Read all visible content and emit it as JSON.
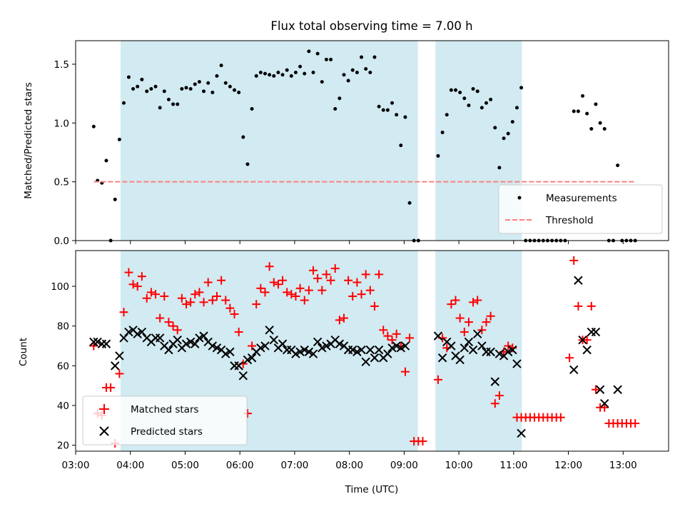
{
  "chart_data": [
    {
      "type": "scatter",
      "title": "Flux total observing time = 7.00 h",
      "xlabel": "",
      "ylabel": "Matched/Predicted stars",
      "xlim": [
        3.0,
        13.83
      ],
      "ylim": [
        0,
        1.7
      ],
      "yticks": [
        0.0,
        0.5,
        1.0,
        1.5
      ],
      "ytick_labels": [
        "0.0",
        "0.5",
        "1.0",
        "1.5"
      ],
      "grid": false,
      "legend_position": "lower-right",
      "shaded_intervals": [
        [
          3.82,
          9.25
        ],
        [
          9.57,
          11.15
        ]
      ],
      "shade_color": "#add8e6",
      "series": [
        {
          "name": "Measurements",
          "kind": "scatter",
          "color": "#000000",
          "marker": "dot",
          "x": [
            3.33,
            3.4,
            3.48,
            3.56,
            3.64,
            3.72,
            3.8,
            3.88,
            3.97,
            4.05,
            4.13,
            4.21,
            4.3,
            4.38,
            4.46,
            4.54,
            4.62,
            4.7,
            4.78,
            4.86,
            4.94,
            5.02,
            5.1,
            5.18,
            5.26,
            5.34,
            5.42,
            5.5,
            5.58,
            5.66,
            5.74,
            5.82,
            5.9,
            5.98,
            6.06,
            6.14,
            6.22,
            6.3,
            6.38,
            6.46,
            6.54,
            6.62,
            6.7,
            6.78,
            6.86,
            6.94,
            7.02,
            7.1,
            7.18,
            7.26,
            7.34,
            7.42,
            7.5,
            7.58,
            7.66,
            7.74,
            7.82,
            7.9,
            7.98,
            8.06,
            8.14,
            8.22,
            8.3,
            8.38,
            8.46,
            8.54,
            8.62,
            8.7,
            8.78,
            8.86,
            8.94,
            9.02,
            9.1,
            9.18,
            9.26,
            9.34,
            9.42,
            9.5,
            9.62,
            9.7,
            9.78,
            9.86,
            9.94,
            10.02,
            10.1,
            10.18,
            10.26,
            10.34,
            10.42,
            10.5,
            10.58,
            10.66,
            10.74,
            10.82,
            10.9,
            10.98,
            11.06,
            11.14,
            11.22,
            11.3,
            11.38,
            11.46,
            11.54,
            11.62,
            11.7,
            11.78,
            11.86,
            11.94,
            12.02,
            12.1,
            12.18,
            12.26,
            12.34,
            12.42,
            12.5,
            12.58,
            12.66,
            12.74,
            12.82,
            12.9,
            12.98,
            13.06,
            13.14,
            13.22
          ],
          "y": [
            0.97,
            0.51,
            0.49,
            0.68,
            0.0,
            0.35,
            0.86,
            1.17,
            1.39,
            1.29,
            1.31,
            1.37,
            1.27,
            1.29,
            1.31,
            1.13,
            1.27,
            1.2,
            1.16,
            1.16,
            1.29,
            1.3,
            1.29,
            1.33,
            1.35,
            1.27,
            1.34,
            1.26,
            1.4,
            1.49,
            1.34,
            1.31,
            1.28,
            1.26,
            0.88,
            0.65,
            1.12,
            1.4,
            1.43,
            1.42,
            1.41,
            1.4,
            1.43,
            1.41,
            1.45,
            1.4,
            1.43,
            1.48,
            1.42,
            1.61,
            1.43,
            1.59,
            1.35,
            1.54,
            1.54,
            1.12,
            1.21,
            1.41,
            1.36,
            1.45,
            1.43,
            1.56,
            1.46,
            1.43,
            1.56,
            1.14,
            1.11,
            1.11,
            1.17,
            1.07,
            0.81,
            1.05,
            0.32,
            0.0,
            0.0,
            null,
            null,
            null,
            0.72,
            0.92,
            1.07,
            1.28,
            1.28,
            1.26,
            1.21,
            1.15,
            1.29,
            1.27,
            1.13,
            1.17,
            1.2,
            0.96,
            0.62,
            0.87,
            0.91,
            1.01,
            1.13,
            1.3,
            0.0,
            0.0,
            0.0,
            0.0,
            0.0,
            0.0,
            0.0,
            0.0,
            0.0,
            0.0,
            null,
            1.1,
            1.1,
            1.23,
            1.08,
            0.95,
            1.16,
            1.0,
            0.95,
            0.0,
            0.0,
            0.64,
            0.0,
            0.0,
            0.0,
            0.0
          ]
        },
        {
          "name": "Threshold",
          "kind": "line",
          "color": "#ff7f7f",
          "dash": "dashed",
          "x": [
            3.33,
            13.22
          ],
          "y": [
            0.5,
            0.5
          ]
        }
      ]
    },
    {
      "type": "scatter",
      "title": "",
      "xlabel": "Time (UTC)",
      "ylabel": "Count",
      "xlim": [
        3.0,
        13.83
      ],
      "ylim": [
        17,
        118
      ],
      "xticks": [
        3,
        4,
        5,
        6,
        7,
        8,
        9,
        10,
        11,
        12,
        13
      ],
      "xtick_labels": [
        "03:00",
        "04:00",
        "05:00",
        "06:00",
        "07:00",
        "08:00",
        "09:00",
        "10:00",
        "11:00",
        "12:00",
        "13:00"
      ],
      "yticks": [
        20,
        40,
        60,
        80,
        100
      ],
      "ytick_labels": [
        "20",
        "40",
        "60",
        "80",
        "100"
      ],
      "grid": false,
      "legend_position": "lower-left",
      "shaded_intervals": [
        [
          3.82,
          9.25
        ],
        [
          9.57,
          11.15
        ]
      ],
      "shade_color": "#add8e6",
      "series": [
        {
          "name": "Matched stars",
          "kind": "scatter",
          "color": "#ff0000",
          "marker": "plus",
          "x": [
            3.33,
            3.4,
            3.48,
            3.56,
            3.64,
            3.72,
            3.8,
            3.88,
            3.97,
            4.05,
            4.13,
            4.21,
            4.3,
            4.38,
            4.46,
            4.54,
            4.62,
            4.7,
            4.78,
            4.86,
            4.94,
            5.02,
            5.1,
            5.18,
            5.26,
            5.34,
            5.42,
            5.5,
            5.58,
            5.66,
            5.74,
            5.82,
            5.9,
            5.98,
            6.06,
            6.14,
            6.22,
            6.3,
            6.38,
            6.46,
            6.54,
            6.62,
            6.7,
            6.78,
            6.86,
            6.94,
            7.02,
            7.1,
            7.18,
            7.26,
            7.34,
            7.42,
            7.5,
            7.58,
            7.66,
            7.74,
            7.82,
            7.9,
            7.98,
            8.06,
            8.14,
            8.22,
            8.3,
            8.38,
            8.46,
            8.54,
            8.62,
            8.7,
            8.78,
            8.86,
            8.94,
            9.02,
            9.1,
            9.18,
            9.26,
            9.34,
            9.42,
            9.5,
            9.62,
            9.7,
            9.78,
            9.86,
            9.94,
            10.02,
            10.1,
            10.18,
            10.26,
            10.34,
            10.42,
            10.5,
            10.58,
            10.66,
            10.74,
            10.82,
            10.9,
            10.98,
            11.06,
            11.14,
            11.22,
            11.3,
            11.38,
            11.46,
            11.54,
            11.62,
            11.7,
            11.78,
            11.86,
            11.94,
            12.02,
            12.1,
            12.18,
            12.26,
            12.34,
            12.42,
            12.5,
            12.58,
            12.66,
            12.74,
            12.82,
            12.9,
            12.98,
            13.06,
            13.14,
            13.22
          ],
          "y": [
            70,
            36,
            35,
            49,
            49,
            21,
            56,
            87,
            107,
            101,
            100,
            105,
            94,
            97,
            96,
            84,
            95,
            82,
            80,
            78,
            94,
            91,
            92,
            96,
            97,
            92,
            102,
            93,
            95,
            103,
            93,
            89,
            86,
            77,
            61,
            36,
            70,
            91,
            99,
            97,
            110,
            102,
            101,
            103,
            97,
            96,
            95,
            99,
            93,
            98,
            108,
            104,
            98,
            106,
            103,
            109,
            83,
            84,
            103,
            95,
            102,
            96,
            106,
            98,
            90,
            106,
            78,
            75,
            73,
            76,
            70,
            57,
            74,
            22,
            22,
            22,
            null,
            null,
            53,
            74,
            69,
            91,
            93,
            84,
            77,
            82,
            92,
            93,
            78,
            82,
            85,
            41,
            45,
            67,
            70,
            69,
            34,
            34,
            34,
            34,
            34,
            34,
            34,
            34,
            34,
            34,
            34,
            null,
            64,
            113,
            90,
            73,
            73,
            90,
            48,
            39,
            39,
            31,
            31,
            31,
            31,
            31,
            31,
            31
          ]
        },
        {
          "name": "Predicted stars",
          "kind": "scatter",
          "color": "#000000",
          "marker": "x",
          "x": [
            3.33,
            3.4,
            3.48,
            3.56,
            3.64,
            3.72,
            3.8,
            3.88,
            3.97,
            4.05,
            4.13,
            4.21,
            4.3,
            4.38,
            4.46,
            4.54,
            4.62,
            4.7,
            4.78,
            4.86,
            4.94,
            5.02,
            5.1,
            5.18,
            5.26,
            5.34,
            5.42,
            5.5,
            5.58,
            5.66,
            5.74,
            5.82,
            5.9,
            5.98,
            6.06,
            6.14,
            6.22,
            6.3,
            6.38,
            6.46,
            6.54,
            6.62,
            6.7,
            6.78,
            6.86,
            6.94,
            7.02,
            7.1,
            7.18,
            7.26,
            7.34,
            7.42,
            7.5,
            7.58,
            7.66,
            7.74,
            7.82,
            7.9,
            7.98,
            8.06,
            8.14,
            8.22,
            8.3,
            8.38,
            8.46,
            8.54,
            8.62,
            8.7,
            8.78,
            8.86,
            8.94,
            9.02,
            9.1,
            9.18,
            9.62,
            9.7,
            9.78,
            9.86,
            9.94,
            10.02,
            10.1,
            10.18,
            10.26,
            10.34,
            10.42,
            10.5,
            10.58,
            10.66,
            10.74,
            10.82,
            10.9,
            10.98,
            11.06,
            11.14,
            12.1,
            12.18,
            12.26,
            12.34,
            12.42,
            12.5,
            12.58,
            12.66,
            12.9
          ],
          "y": [
            72,
            72,
            71,
            71,
            null,
            60,
            65,
            74,
            77,
            78,
            76,
            77,
            74,
            72,
            74,
            74,
            70,
            68,
            71,
            73,
            69,
            71,
            72,
            71,
            74,
            75,
            72,
            70,
            69,
            68,
            66,
            67,
            60,
            60,
            55,
            63,
            64,
            67,
            69,
            70,
            78,
            73,
            69,
            71,
            68,
            68,
            66,
            67,
            68,
            67,
            66,
            72,
            69,
            70,
            71,
            73,
            71,
            70,
            68,
            68,
            67,
            68,
            62,
            68,
            64,
            68,
            64,
            66,
            69,
            70,
            69,
            70,
            null,
            null,
            75,
            64,
            72,
            70,
            65,
            63,
            69,
            72,
            68,
            76,
            70,
            67,
            67,
            52,
            66,
            65,
            67,
            68,
            61,
            26,
            58,
            103,
            73,
            68,
            77,
            77,
            48,
            41,
            48
          ]
        }
      ]
    }
  ]
}
